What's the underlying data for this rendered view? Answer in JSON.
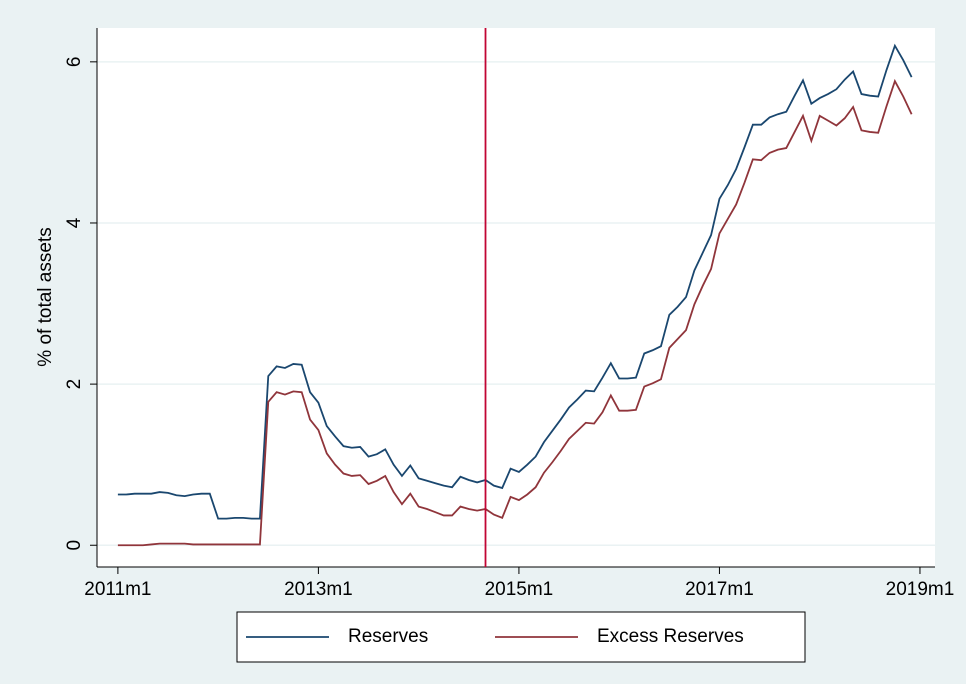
{
  "chart_data": {
    "type": "line",
    "y_label": "% of total assets",
    "x": [
      612,
      613,
      614,
      615,
      616,
      617,
      618,
      619,
      620,
      621,
      622,
      623,
      624,
      625,
      626,
      627,
      628,
      629,
      630,
      631,
      632,
      633,
      634,
      635,
      636,
      637,
      638,
      639,
      640,
      641,
      642,
      643,
      644,
      645,
      646,
      647,
      648,
      649,
      650,
      651,
      652,
      653,
      654,
      655,
      656,
      657,
      658,
      659,
      660,
      661,
      662,
      663,
      664,
      665,
      666,
      667,
      668,
      669,
      670,
      671,
      672,
      673,
      674,
      675,
      676,
      677,
      678,
      679,
      680,
      681,
      682,
      683,
      684,
      685,
      686,
      687,
      688,
      689,
      690,
      691,
      692,
      693,
      694,
      695,
      696,
      697,
      698,
      699,
      700,
      701,
      702,
      703,
      704,
      705,
      706,
      707
    ],
    "series": [
      {
        "name": "Reserves",
        "color": "#1a476f",
        "values": [
          0.63,
          0.63,
          0.64,
          0.64,
          0.64,
          0.66,
          0.65,
          0.62,
          0.61,
          0.63,
          0.64,
          0.64,
          0.33,
          0.33,
          0.34,
          0.34,
          0.33,
          0.33,
          2.1,
          2.22,
          2.2,
          2.25,
          2.24,
          1.9,
          1.77,
          1.48,
          1.35,
          1.23,
          1.21,
          1.22,
          1.1,
          1.13,
          1.19,
          1.0,
          0.86,
          0.99,
          0.83,
          0.8,
          0.77,
          0.74,
          0.72,
          0.85,
          0.81,
          0.78,
          0.81,
          0.74,
          0.71,
          0.95,
          0.91,
          1.0,
          1.1,
          1.28,
          1.42,
          1.56,
          1.71,
          1.81,
          1.92,
          1.91,
          2.08,
          2.26,
          2.07,
          2.07,
          2.08,
          2.38,
          2.42,
          2.47,
          2.86,
          2.96,
          3.08,
          3.41,
          3.63,
          3.85,
          4.3,
          4.47,
          4.67,
          4.94,
          5.22,
          5.22,
          5.31,
          5.35,
          5.38,
          5.58,
          5.77,
          5.48,
          5.55,
          5.6,
          5.66,
          5.78,
          5.88,
          5.6,
          5.58,
          5.57,
          5.9,
          6.2,
          6.02,
          5.81
        ]
      },
      {
        "name": "Excess Reserves",
        "color": "#90353b",
        "values": [
          0.0,
          0.0,
          0.0,
          0.0,
          0.01,
          0.02,
          0.02,
          0.02,
          0.02,
          0.01,
          0.01,
          0.01,
          0.01,
          0.01,
          0.01,
          0.01,
          0.01,
          0.01,
          1.78,
          1.9,
          1.87,
          1.91,
          1.9,
          1.56,
          1.43,
          1.14,
          1.0,
          0.89,
          0.86,
          0.87,
          0.76,
          0.8,
          0.86,
          0.66,
          0.51,
          0.64,
          0.48,
          0.45,
          0.41,
          0.37,
          0.37,
          0.48,
          0.45,
          0.43,
          0.45,
          0.38,
          0.34,
          0.6,
          0.56,
          0.63,
          0.72,
          0.9,
          1.03,
          1.17,
          1.32,
          1.42,
          1.52,
          1.51,
          1.65,
          1.86,
          1.67,
          1.67,
          1.68,
          1.97,
          2.01,
          2.06,
          2.45,
          2.56,
          2.67,
          2.99,
          3.22,
          3.43,
          3.87,
          4.05,
          4.23,
          4.5,
          4.79,
          4.78,
          4.87,
          4.91,
          4.93,
          5.13,
          5.33,
          5.02,
          5.33,
          5.27,
          5.21,
          5.3,
          5.44,
          5.15,
          5.13,
          5.12,
          5.45,
          5.76,
          5.57,
          5.35
        ]
      }
    ],
    "xlim": [
      609.5,
      709.8
    ],
    "xticks": [
      {
        "value": 612,
        "label": "2011m1"
      },
      {
        "value": 636,
        "label": "2013m1"
      },
      {
        "value": 660,
        "label": "2015m1"
      },
      {
        "value": 684,
        "label": "2017m1"
      },
      {
        "value": 708,
        "label": "2019m1"
      }
    ],
    "ylim": [
      -0.27,
      6.42
    ],
    "yticks": [
      0,
      2,
      4,
      6
    ],
    "grid": true,
    "xline": {
      "value": 656,
      "color": "#c10534"
    },
    "legend": "bottom"
  }
}
